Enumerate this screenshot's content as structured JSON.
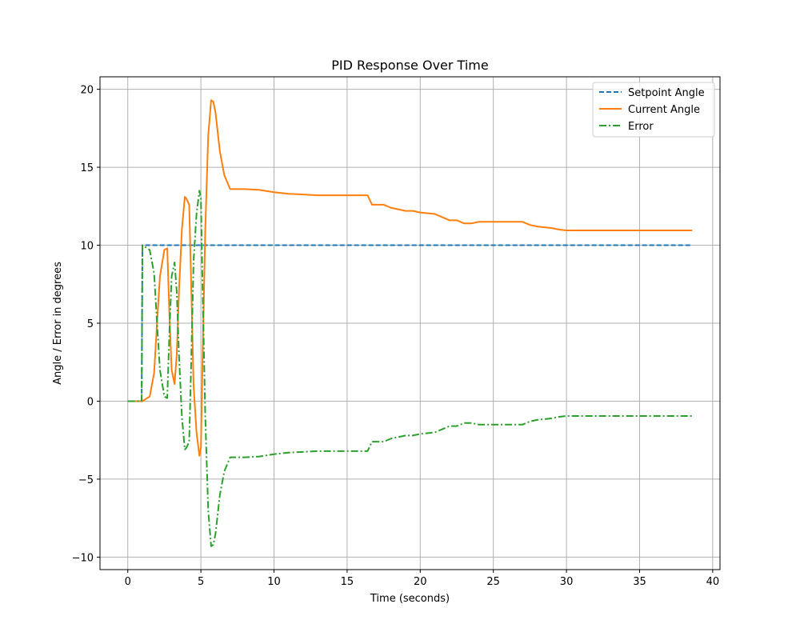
{
  "chart_data": {
    "type": "line",
    "title": "PID Response Over Time",
    "xlabel": "Time (seconds)",
    "ylabel": "Angle / Error in degrees",
    "xlim": [
      -1.9,
      40.5
    ],
    "ylim": [
      -10.8,
      20.8
    ],
    "xticks": [
      0,
      5,
      10,
      15,
      20,
      25,
      30,
      35,
      40
    ],
    "yticks": [
      -10,
      -5,
      0,
      5,
      10,
      15,
      20
    ],
    "grid": true,
    "legend_position": "top-right",
    "series": [
      {
        "name": "Setpoint Angle",
        "color": "#1f77b4",
        "style": "dashed",
        "x": [
          0,
          0.95,
          1.0,
          38.6
        ],
        "y": [
          0,
          0,
          10,
          10
        ]
      },
      {
        "name": "Current Angle",
        "color": "#ff7f0e",
        "style": "solid",
        "x": [
          0,
          1.0,
          1.5,
          1.8,
          2.0,
          2.2,
          2.5,
          2.7,
          2.85,
          3.0,
          3.2,
          3.35,
          3.5,
          3.7,
          3.9,
          4.0,
          4.2,
          4.35,
          4.5,
          4.7,
          4.9,
          5.0,
          5.1,
          5.3,
          5.5,
          5.7,
          5.85,
          6.0,
          6.3,
          6.6,
          7.0,
          7.5,
          8.0,
          9.0,
          10.0,
          11.0,
          12.0,
          13.0,
          14.0,
          15.0,
          16.4,
          16.7,
          17.5,
          18.0,
          19.0,
          19.5,
          20.0,
          21.0,
          21.5,
          22.0,
          22.5,
          23.0,
          23.5,
          24.0,
          25.0,
          26.0,
          27.0,
          27.5,
          28.0,
          29.0,
          29.5,
          30.0,
          32.0,
          35.0,
          38.6
        ],
        "y": [
          0,
          0,
          0.3,
          1.8,
          5.0,
          8.0,
          9.7,
          9.8,
          5.5,
          2.0,
          1.1,
          3.0,
          7.0,
          11.0,
          13.1,
          13.0,
          12.6,
          7.0,
          1.0,
          -2.0,
          -3.5,
          -3.0,
          2.0,
          11.0,
          17.0,
          19.3,
          19.2,
          18.5,
          16.0,
          14.5,
          13.6,
          13.6,
          13.6,
          13.55,
          13.4,
          13.3,
          13.25,
          13.2,
          13.2,
          13.2,
          13.2,
          12.6,
          12.6,
          12.4,
          12.2,
          12.2,
          12.1,
          12.0,
          11.8,
          11.6,
          11.6,
          11.4,
          11.4,
          11.5,
          11.5,
          11.5,
          11.5,
          11.3,
          11.2,
          11.1,
          11.0,
          10.95,
          10.95,
          10.95,
          10.95
        ]
      },
      {
        "name": "Error",
        "color": "#2ca02c",
        "style": "dashdot",
        "x": [
          0,
          0.95,
          1.0,
          1.5,
          1.8,
          2.0,
          2.2,
          2.5,
          2.7,
          2.85,
          3.0,
          3.2,
          3.35,
          3.5,
          3.7,
          3.9,
          4.0,
          4.2,
          4.35,
          4.5,
          4.7,
          4.9,
          5.0,
          5.1,
          5.3,
          5.5,
          5.7,
          5.85,
          6.0,
          6.3,
          6.6,
          7.0,
          7.5,
          8.0,
          9.0,
          10.0,
          11.0,
          12.0,
          13.0,
          14.0,
          15.0,
          16.4,
          16.7,
          17.5,
          18.0,
          19.0,
          19.5,
          20.0,
          21.0,
          21.5,
          22.0,
          22.5,
          23.0,
          23.5,
          24.0,
          25.0,
          26.0,
          27.0,
          27.5,
          28.0,
          29.0,
          29.5,
          30.0,
          32.0,
          35.0,
          38.6
        ],
        "y": [
          0,
          0,
          10,
          9.7,
          8.2,
          5.0,
          2.0,
          0.3,
          0.2,
          4.5,
          8.0,
          8.9,
          7.0,
          3.0,
          -1.0,
          -3.1,
          -3.0,
          -2.6,
          3.0,
          9.0,
          12.0,
          13.5,
          13.0,
          8.0,
          -1.0,
          -7.0,
          -9.3,
          -9.2,
          -8.5,
          -6.0,
          -4.5,
          -3.6,
          -3.6,
          -3.6,
          -3.55,
          -3.4,
          -3.3,
          -3.25,
          -3.2,
          -3.2,
          -3.2,
          -3.2,
          -2.6,
          -2.6,
          -2.4,
          -2.2,
          -2.2,
          -2.1,
          -2.0,
          -1.8,
          -1.6,
          -1.6,
          -1.4,
          -1.4,
          -1.5,
          -1.5,
          -1.5,
          -1.5,
          -1.3,
          -1.2,
          -1.1,
          -1.0,
          -0.95,
          -0.95,
          -0.95,
          -0.95
        ]
      }
    ]
  }
}
